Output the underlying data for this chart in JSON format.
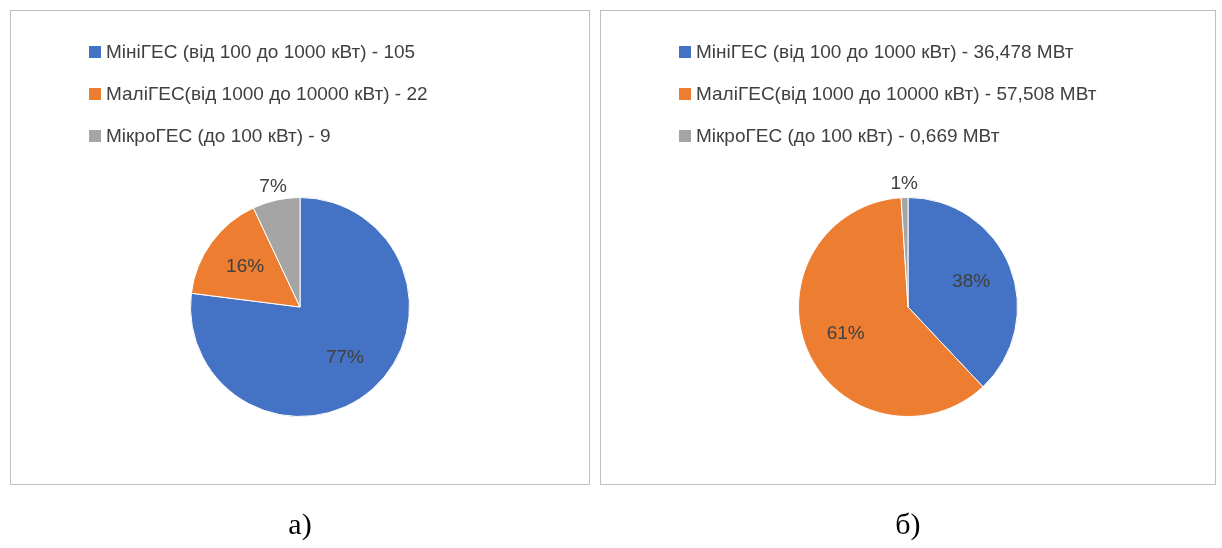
{
  "chart_data": [
    {
      "type": "pie",
      "categories": [
        "МініГЕС (від 100 до 1000 кВт) - 105",
        "МаліГЕС(від 1000 до 10000 кВт) - 22",
        "МікроГЕС (до 100 кВт) - 9"
      ],
      "values": [
        77,
        16,
        7
      ],
      "colors": [
        "#4472c4",
        "#ed7d31",
        "#a5a5a5"
      ],
      "value_labels": [
        "77%",
        "16%",
        "7%"
      ],
      "legend": "top",
      "annotations": [
        "а)"
      ]
    },
    {
      "type": "pie",
      "categories": [
        "МініГЕС (від 100 до 1000 кВт) - 36,478 МВт",
        "МаліГЕС(від 1000 до 10000 кВт) - 57,508 МВт",
        "МікроГЕС (до 100 кВт) - 0,669 МВт"
      ],
      "values": [
        38,
        61,
        1
      ],
      "colors": [
        "#4472c4",
        "#ed7d31",
        "#a5a5a5"
      ],
      "value_labels": [
        "38%",
        "61%",
        "1%"
      ],
      "legend": "top",
      "annotations": [
        "б)"
      ]
    }
  ]
}
